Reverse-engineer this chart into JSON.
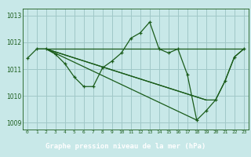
{
  "background_color": "#c8e8e8",
  "grid_color": "#a0c8c8",
  "line_color": "#1a5c1a",
  "label_bg_color": "#1a5c1a",
  "label_text_color": "#ffffff",
  "title": "Graphe pression niveau de la mer (hPa)",
  "xlim": [
    -0.5,
    23.5
  ],
  "ylim": [
    1008.75,
    1013.25
  ],
  "yticks": [
    1009,
    1010,
    1011,
    1012,
    1013
  ],
  "xticks": [
    0,
    1,
    2,
    3,
    4,
    5,
    6,
    7,
    8,
    9,
    10,
    11,
    12,
    13,
    14,
    15,
    16,
    17,
    18,
    19,
    20,
    21,
    22,
    23
  ],
  "series": [
    {
      "x": [
        0,
        1,
        2,
        3,
        4,
        5,
        6,
        7,
        8,
        9,
        10,
        11,
        12,
        13,
        14,
        15,
        16,
        17,
        18,
        19,
        20,
        21,
        22,
        23
      ],
      "y": [
        1011.4,
        1011.75,
        1011.75,
        1011.55,
        1011.2,
        1010.7,
        1010.35,
        1010.35,
        1011.05,
        1011.3,
        1011.6,
        1012.15,
        1012.35,
        1012.75,
        1011.75,
        1011.6,
        1011.75,
        1010.8,
        1009.1,
        1009.45,
        1009.85,
        1010.55,
        1011.45,
        1011.75
      ],
      "marker": true
    },
    {
      "x": [
        1,
        2,
        19,
        20,
        21,
        22,
        23
      ],
      "y": [
        1011.75,
        1011.75,
        1009.85,
        1009.85,
        1010.55,
        1011.45,
        1011.75
      ],
      "marker": false
    },
    {
      "x": [
        2,
        23
      ],
      "y": [
        1011.75,
        1011.75
      ],
      "marker": false
    },
    {
      "x": [
        2,
        19
      ],
      "y": [
        1011.75,
        1009.85
      ],
      "marker": false
    },
    {
      "x": [
        2,
        18
      ],
      "y": [
        1011.75,
        1009.1
      ],
      "marker": false
    }
  ]
}
